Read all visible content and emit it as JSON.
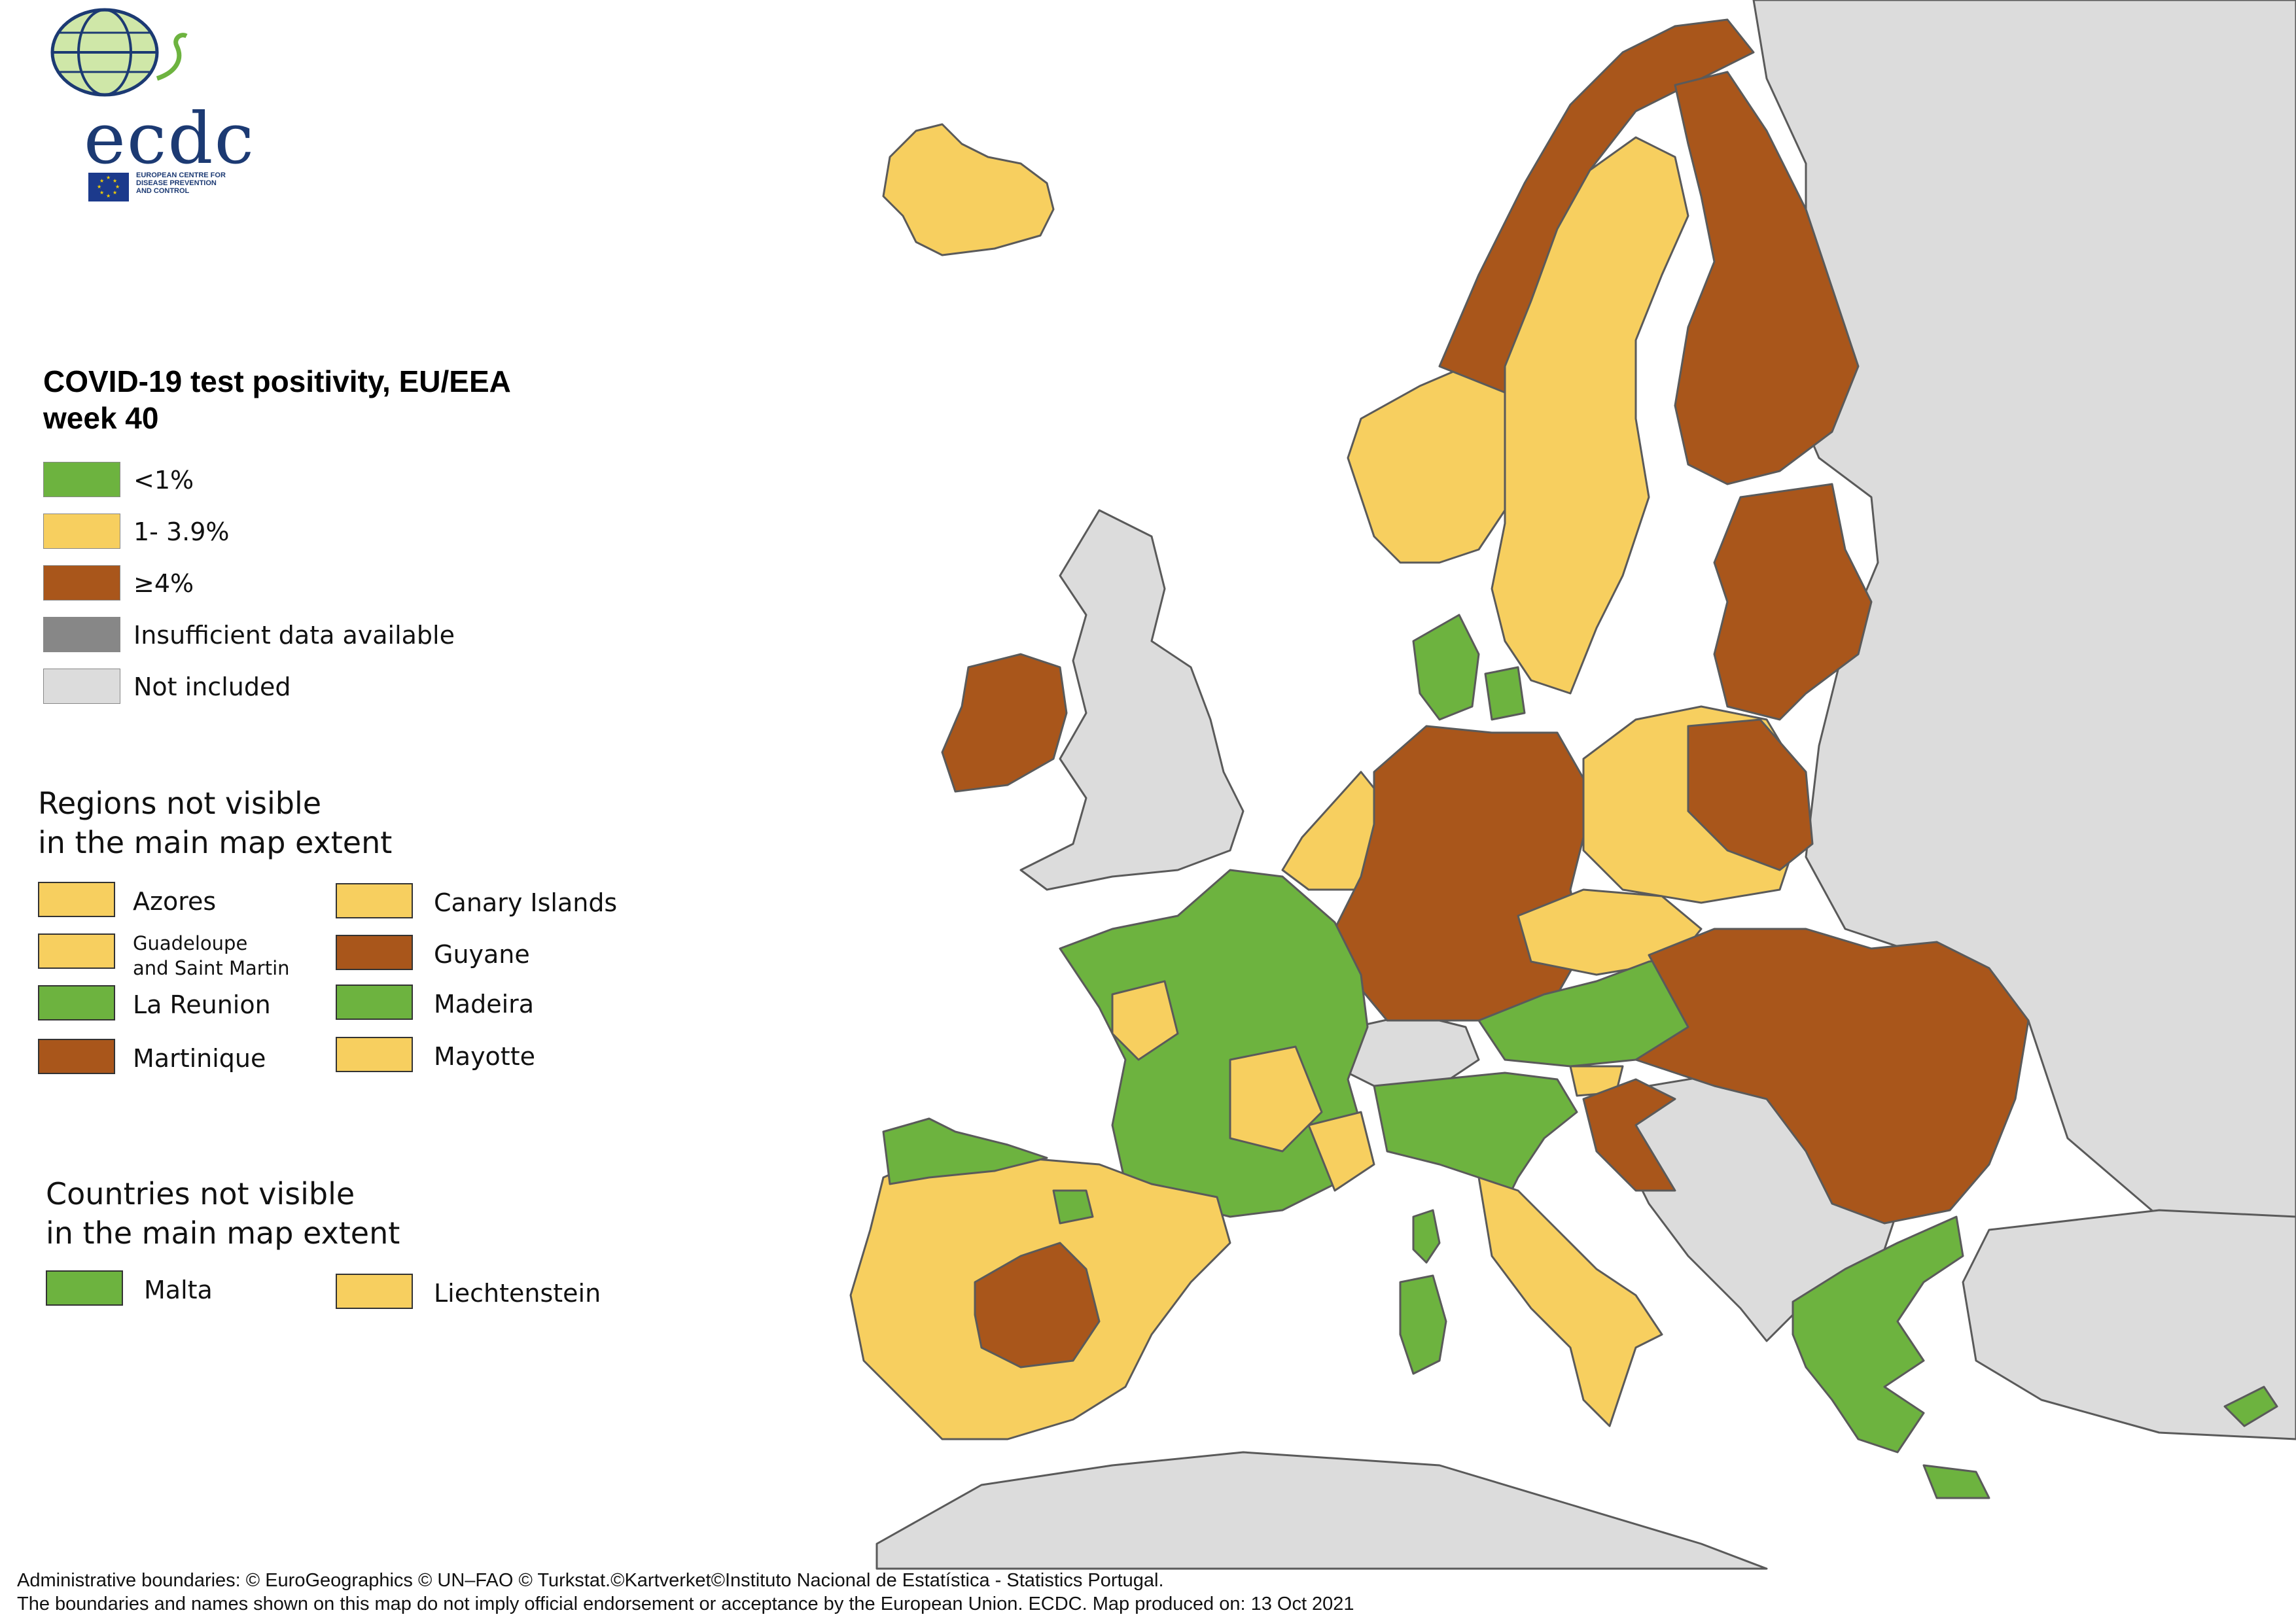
{
  "colors": {
    "lt1": "#6db33f",
    "mid": "#f7cf5f",
    "ge4": "#a9561b",
    "insufficient": "#878787",
    "not_included": "#dcdcdc",
    "sea": "#ffffff",
    "border": "#6e6e6e"
  },
  "logo": {
    "text": "ecdc",
    "sub_line1": "EUROPEAN CENTRE FOR",
    "sub_line2": "DISEASE PREVENTION",
    "sub_line3": "AND CONTROL"
  },
  "legend": {
    "title_line1": "COVID-19 test positivity, EU/EEA",
    "title_line2": "week 40",
    "items": [
      {
        "label": "<1%",
        "color": "#6db33f"
      },
      {
        "label": "1- 3.9%",
        "color": "#f7cf5f"
      },
      {
        "label": "≥4%",
        "color": "#a9561b"
      },
      {
        "label": "Insufficient data available",
        "color": "#878787"
      },
      {
        "label": "Not included",
        "color": "#dcdcdc"
      }
    ]
  },
  "regions_not_visible": {
    "title_line1": "Regions not visible",
    "title_line2": "in the main map extent",
    "left": [
      {
        "label": "Azores",
        "color": "#f7cf5f"
      },
      {
        "label": "Guadeloupe",
        "label2": "and Saint Martin",
        "color": "#f7cf5f"
      },
      {
        "label": "La Reunion",
        "color": "#6db33f"
      },
      {
        "label": "Martinique",
        "color": "#a9561b"
      }
    ],
    "right": [
      {
        "label": "Canary Islands",
        "color": "#f7cf5f"
      },
      {
        "label": "Guyane",
        "color": "#a9561b"
      },
      {
        "label": "Madeira",
        "color": "#6db33f"
      },
      {
        "label": "Mayotte",
        "color": "#f7cf5f"
      }
    ]
  },
  "countries_not_visible": {
    "title_line1": "Countries not visible",
    "title_line2": "in the main map extent",
    "items": [
      {
        "label": "Malta",
        "color": "#6db33f"
      },
      {
        "label": "Liechtenstein",
        "color": "#f7cf5f"
      }
    ]
  },
  "map": {
    "regions": [
      {
        "name": "iceland",
        "category": "mid"
      },
      {
        "name": "norway",
        "category": "mid"
      },
      {
        "name": "norway-north",
        "category": "ge4"
      },
      {
        "name": "sweden",
        "category": "mid"
      },
      {
        "name": "finland",
        "category": "ge4"
      },
      {
        "name": "estonia-latvia-lithuania",
        "category": "ge4"
      },
      {
        "name": "denmark",
        "category": "lt1"
      },
      {
        "name": "ireland",
        "category": "ge4"
      },
      {
        "name": "united-kingdom",
        "category": "not_included"
      },
      {
        "name": "netherlands-belgium",
        "category": "mid"
      },
      {
        "name": "germany",
        "category": "ge4"
      },
      {
        "name": "poland",
        "category": "mid"
      },
      {
        "name": "poland-east",
        "category": "ge4"
      },
      {
        "name": "czechia",
        "category": "mid"
      },
      {
        "name": "france",
        "category": "lt1"
      },
      {
        "name": "france-yellow-regions",
        "category": "mid"
      },
      {
        "name": "switzerland",
        "category": "not_included"
      },
      {
        "name": "austria-slovakia",
        "category": "lt1"
      },
      {
        "name": "hungary-romania",
        "category": "ge4"
      },
      {
        "name": "croatia",
        "category": "ge4"
      },
      {
        "name": "slovenia",
        "category": "mid"
      },
      {
        "name": "italy-north",
        "category": "lt1"
      },
      {
        "name": "italy-south",
        "category": "mid"
      },
      {
        "name": "spain-portugal",
        "category": "mid"
      },
      {
        "name": "spain-north-coast",
        "category": "lt1"
      },
      {
        "name": "spain-centre",
        "category": "ge4"
      },
      {
        "name": "greece",
        "category": "lt1"
      },
      {
        "name": "cyprus",
        "category": "lt1"
      },
      {
        "name": "sardinia",
        "category": "lt1"
      },
      {
        "name": "corsica",
        "category": "lt1"
      },
      {
        "name": "balkans",
        "category": "not_included"
      },
      {
        "name": "russia-belarus-ukraine",
        "category": "not_included"
      },
      {
        "name": "turkey",
        "category": "not_included"
      },
      {
        "name": "north-africa",
        "category": "not_included"
      }
    ]
  },
  "footer": {
    "line1": "Administrative boundaries: © EuroGeographics © UN–FAO © Turkstat.©Kartverket©Instituto Nacional de Estatística - Statistics Portugal.",
    "line2": "The boundaries and names shown on this map do not imply official endorsement or acceptance by the European Union. ECDC. Map produced on: 13 Oct 2021"
  }
}
